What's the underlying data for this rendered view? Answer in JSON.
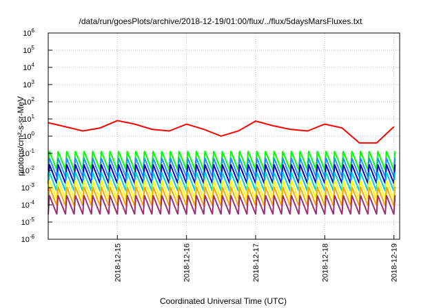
{
  "chart_data": {
    "type": "line",
    "title": "/data/run/goesPlots/archive/2018-12-19/01:00/flux/../flux/5daysMarsFluxes.txt",
    "xlabel": "Coordinated Universal Time (UTC)",
    "ylabel": "protons/cm²-s-sr-MeV",
    "y_scale": "log",
    "ylim": [
      "1e-6",
      "1e6"
    ],
    "xlim": [
      "2018-12-14 00:00",
      "2018-12-19 02:00"
    ],
    "y_tick_labels": [
      {
        "base": "10",
        "exp": "-6"
      },
      {
        "base": "10",
        "exp": "-5"
      },
      {
        "base": "10",
        "exp": "-4"
      },
      {
        "base": "10",
        "exp": "-3"
      },
      {
        "base": "10",
        "exp": "-2"
      },
      {
        "base": "10",
        "exp": "-1"
      },
      {
        "base": "10",
        "exp": "0"
      },
      {
        "base": "10",
        "exp": "1"
      },
      {
        "base": "10",
        "exp": "2"
      },
      {
        "base": "10",
        "exp": "3"
      },
      {
        "base": "10",
        "exp": "4"
      },
      {
        "base": "10",
        "exp": "5"
      },
      {
        "base": "10",
        "exp": "6"
      }
    ],
    "x_ticks": [
      "2018-12-15",
      "2018-12-16",
      "2018-12-17",
      "2018-12-18",
      "2018-12-19"
    ],
    "grid": true,
    "series": [
      {
        "color": "#ff0000",
        "x": [
          "2018-12-14 00:00",
          "2018-12-14 06:00",
          "2018-12-14 12:00",
          "2018-12-14 18:00",
          "2018-12-15 00:00",
          "2018-12-15 06:00",
          "2018-12-15 12:00",
          "2018-12-15 18:00",
          "2018-12-16 00:00",
          "2018-12-16 06:00",
          "2018-12-16 12:00",
          "2018-12-16 18:00",
          "2018-12-17 00:00",
          "2018-12-17 06:00",
          "2018-12-17 12:00",
          "2018-12-17 18:00",
          "2018-12-18 00:00",
          "2018-12-18 06:00",
          "2018-12-18 12:00",
          "2018-12-18 18:00",
          "2018-12-19 00:00"
        ],
        "values": [
          6.0,
          3.5,
          2.0,
          3.0,
          8.0,
          5.0,
          2.5,
          2.0,
          5.0,
          2.5,
          1.0,
          2.0,
          7.5,
          4.0,
          2.5,
          2.0,
          5.0,
          3.0,
          0.4,
          0.4,
          3.5
        ]
      },
      {
        "color": "#00ff00",
        "base": 0.03
      },
      {
        "color": "#1e90ff",
        "base": 0.012
      },
      {
        "color": "#0000cd",
        "base": 0.005
      },
      {
        "color": "#00ced1",
        "base": 0.0018
      },
      {
        "color": "#ffff00",
        "base": 0.0006
      },
      {
        "color": "#ffa500",
        "base": 0.00025
      },
      {
        "color": "#9b3070",
        "base": 8e-05
      }
    ]
  }
}
